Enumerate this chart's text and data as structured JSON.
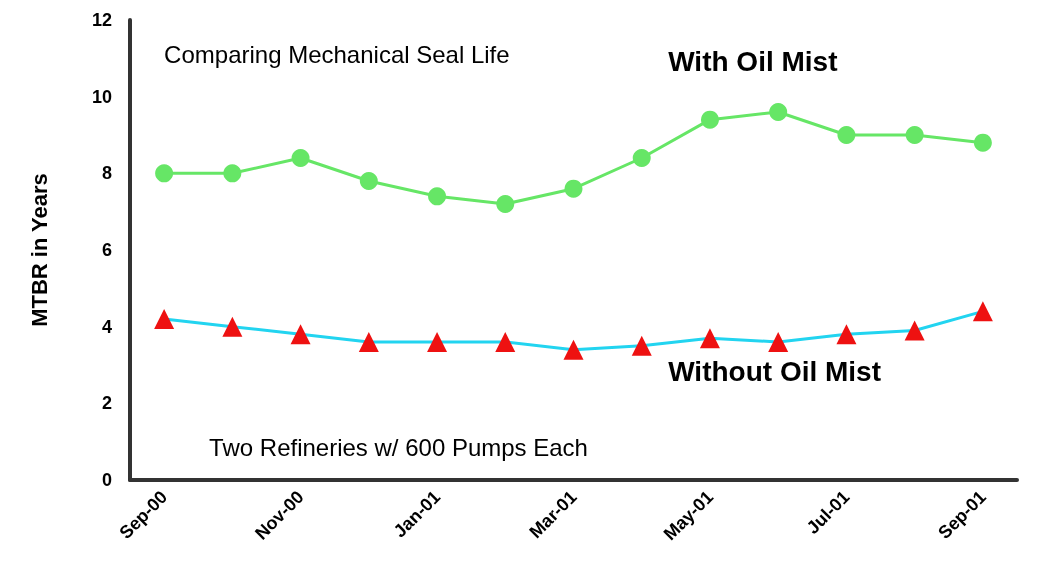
{
  "chart_data": {
    "type": "line",
    "ylabel": "MTBR in Years",
    "categories": [
      "Sep-00",
      null,
      "Nov-00",
      null,
      "Jan-01",
      null,
      "Mar-01",
      null,
      "May-01",
      null,
      "Jul-01",
      null,
      "Sep-01"
    ],
    "series": [
      {
        "name": "With Oil Mist",
        "color": "#66e666",
        "marker": "circle",
        "values": [
          8.0,
          8.0,
          8.4,
          7.8,
          7.4,
          7.2,
          7.6,
          8.4,
          9.4,
          9.6,
          9.0,
          9.0,
          8.8
        ]
      },
      {
        "name": "Without Oil Mist",
        "color": "#22d4f0",
        "colors": [
          "#ee1111",
          "#ee1111",
          "#ee1111",
          "#ee1111",
          "#ee1111",
          "#ee1111",
          "#ee1111",
          "#ee1111",
          "#ee1111",
          "#ee1111",
          "#ee1111",
          "#ee1111",
          "#ee1111"
        ],
        "marker": "triangle",
        "values": [
          4.2,
          4.0,
          3.8,
          3.6,
          3.6,
          3.6,
          3.4,
          3.5,
          3.7,
          3.6,
          3.8,
          3.9,
          4.4
        ]
      }
    ],
    "ylim": [
      0,
      12
    ],
    "yticks": [
      0,
      2,
      4,
      6,
      8,
      10,
      12
    ],
    "grid": false,
    "legend": false,
    "line_style": "solid",
    "annotations": [
      "Comparing Mechanical Seal Life",
      "Two Refineries w/ 600 Pumps Each"
    ]
  }
}
